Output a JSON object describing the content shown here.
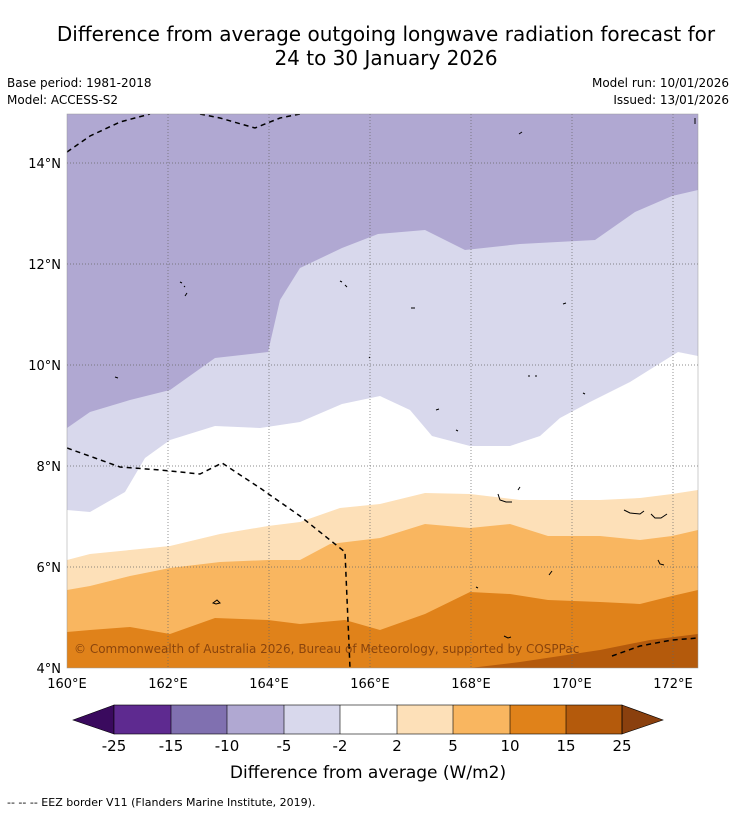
{
  "header": {
    "title_line1": "Difference from average outgoing longwave radiation forecast for",
    "title_line2": "24 to 30 January 2026",
    "base_period": "Base period: 1981-2018",
    "model": "Model: ACCESS-S2",
    "model_run": "Model run: 10/01/2026",
    "issued": "Issued: 13/01/2026"
  },
  "map": {
    "lon_ticks": [
      "160°E",
      "162°E",
      "164°E",
      "166°E",
      "168°E",
      "170°E",
      "172°E"
    ],
    "lat_ticks": [
      "14°N",
      "12°N",
      "10°N",
      "8°N",
      "6°N",
      "4°N"
    ],
    "copyright": "© Commonwealth of Australia 2026, Bureau of Meteorology, supported by COSPPac"
  },
  "colorbar": {
    "title": "Difference from average (W/m2)",
    "tick_labels": [
      "-25",
      "-15",
      "-10",
      "-5",
      "-2",
      "2",
      "5",
      "10",
      "15",
      "25"
    ],
    "colors": [
      "#3a0a5e",
      "#5e2a90",
      "#8070b0",
      "#b0a8d2",
      "#d8d8ec",
      "#ffffff",
      "#fde0b8",
      "#f9b660",
      "#e0821a",
      "#b45a0c",
      "#8a400e"
    ]
  },
  "footer": {
    "legend": "--  --  -- EEZ border V11 (Flanders Marine Institute, 2019)."
  }
}
